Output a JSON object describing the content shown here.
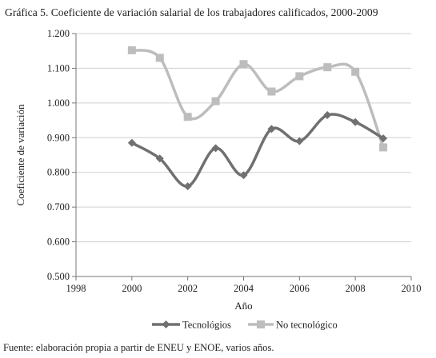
{
  "figure": {
    "title": "Gráfica 5. Coeficiente de variación salarial de los trabajadores calificados, 2000-2009",
    "source": "Fuente: elaboración propia a partir de ENEU y ENOE, varios años."
  },
  "chart_data": {
    "type": "line",
    "title": "Gráfica 5. Coeficiente de variación salarial de los trabajadores calificados, 2000-2009",
    "xlabel": "Año",
    "ylabel": "Coeficiente de variación",
    "xlim": [
      1998,
      2010
    ],
    "ylim": [
      0.5,
      1.2
    ],
    "x_ticks": [
      1998,
      2000,
      2002,
      2004,
      2006,
      2008,
      2010
    ],
    "x_tick_labels": [
      "1998",
      "2000",
      "2002",
      "2004",
      "2006",
      "2008",
      "2010"
    ],
    "y_ticks": [
      0.5,
      0.6,
      0.7,
      0.8,
      0.9,
      1.0,
      1.1,
      1.2
    ],
    "y_tick_labels": [
      "0.500",
      "0.600",
      "0.700",
      "0.800",
      "0.900",
      "1.000",
      "1.100",
      "1.200"
    ],
    "grid": "horizontal",
    "legend_position": "bottom",
    "smooth": true,
    "x": [
      2000,
      2001,
      2002,
      2003,
      2004,
      2005,
      2006,
      2007,
      2008,
      2009
    ],
    "series": [
      {
        "name": "Tecnológios",
        "marker": "diamond",
        "color": "#707070",
        "values": [
          0.885,
          0.84,
          0.76,
          0.87,
          0.792,
          0.925,
          0.89,
          0.965,
          0.945,
          0.898
        ]
      },
      {
        "name": "No tecnológico",
        "marker": "square",
        "color": "#bdbdbd",
        "values": [
          1.152,
          1.13,
          0.96,
          1.005,
          1.112,
          1.033,
          1.077,
          1.103,
          1.09,
          0.872
        ]
      }
    ]
  }
}
